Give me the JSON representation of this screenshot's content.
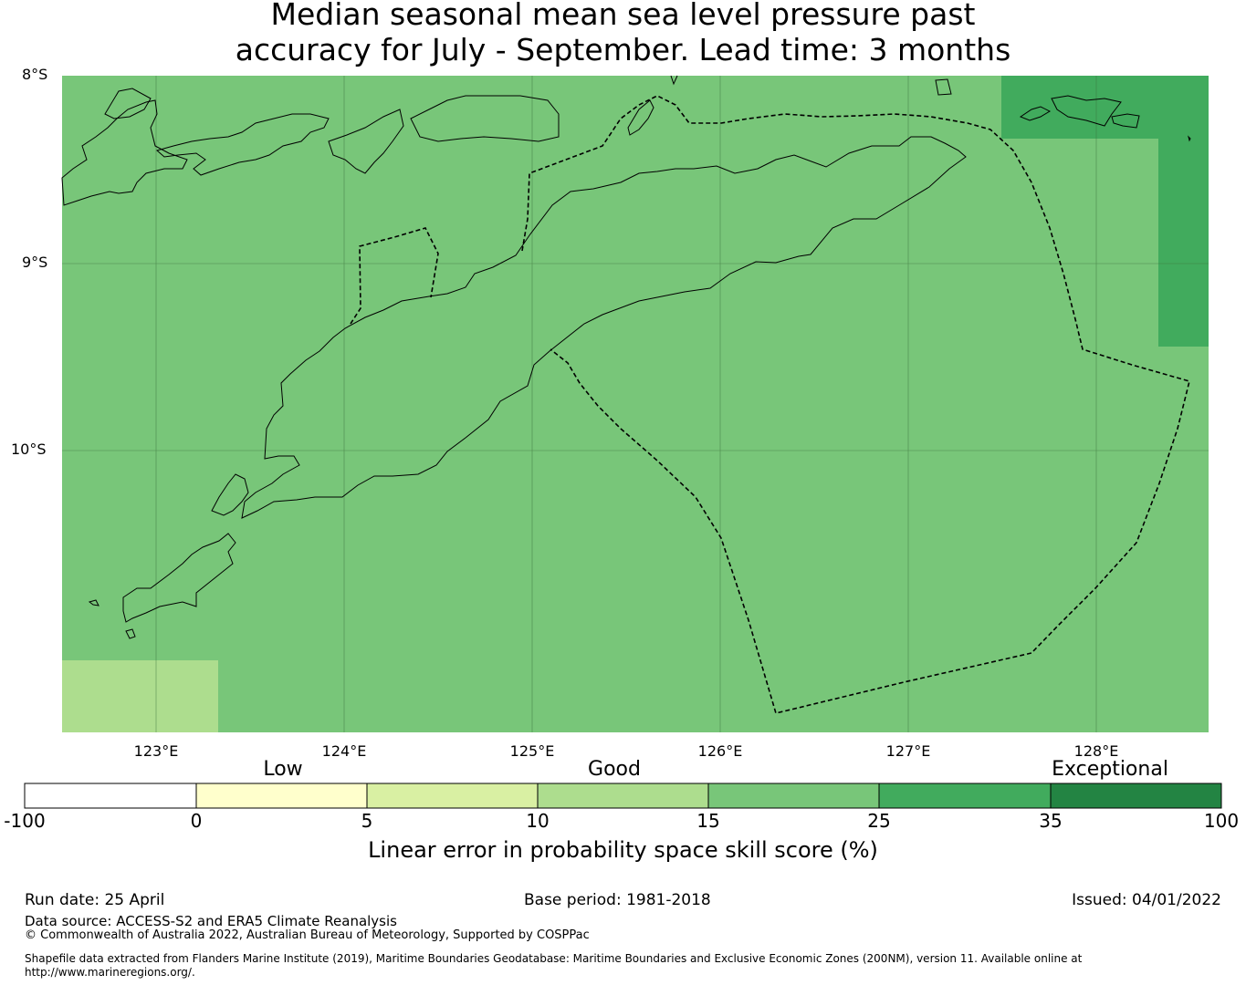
{
  "title": {
    "line1": "Median seasonal mean sea level pressure past",
    "line2": "accuracy for July - September. Lead time: 3 months"
  },
  "map": {
    "lat_labels": [
      "8°S",
      "9°S",
      "10°S"
    ],
    "lon_labels": [
      "123°E",
      "124°E",
      "125°E",
      "126°E",
      "127°E",
      "128°E"
    ],
    "colors": {
      "base": "#78c679",
      "high": "#41ab5d",
      "low": "#addd8e",
      "outline": "#000000"
    }
  },
  "colorbar": {
    "categories": [
      "Low",
      "Good",
      "Exceptional"
    ],
    "ticks": [
      "-100",
      "0",
      "5",
      "10",
      "15",
      "25",
      "35",
      "100"
    ],
    "colors": [
      "#ffffff",
      "#ffffcc",
      "#d9f0a3",
      "#addd8e",
      "#78c679",
      "#41ab5d",
      "#238443"
    ],
    "label": "Linear error in probability space skill score (%)"
  },
  "footer": {
    "run_date": "Run date: 25 April",
    "base_period": "Base period: 1981-2018",
    "issued": "Issued: 04/01/2022",
    "data_source": "Data source: ACCESS-S2 and ERA5 Climate Reanalysis",
    "copyright": "© Commonwealth of Australia 2022, Australian Bureau of Meteorology, Supported by COSPPac",
    "shapefile_line1": "Shapefile data extracted from Flanders Marine Institute (2019), Maritime Boundaries Geodatabase: Maritime Boundaries and Exclusive Economic Zones (200NM), version 11. Available online at",
    "shapefile_line2": "http://www.marineregions.org/."
  }
}
